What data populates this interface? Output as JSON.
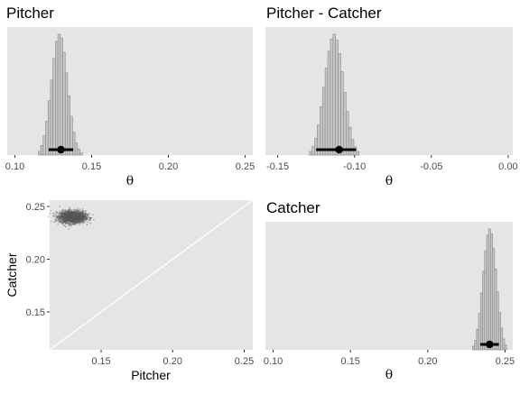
{
  "chart_data": [
    {
      "type": "histogram",
      "title": "Pitcher",
      "xlabel": "θ",
      "xlim": [
        0.095,
        0.255
      ],
      "x_ticks": [
        "0.10",
        "0.15",
        "0.20",
        "0.25"
      ],
      "x_tick_values": [
        0.1,
        0.15,
        0.2,
        0.25
      ],
      "bin_width": 0.0016,
      "bins": [
        {
          "x": 0.116,
          "density": 0.03
        },
        {
          "x": 0.1176,
          "density": 0.08
        },
        {
          "x": 0.1192,
          "density": 0.16
        },
        {
          "x": 0.1208,
          "density": 0.28
        },
        {
          "x": 0.1224,
          "density": 0.45
        },
        {
          "x": 0.124,
          "density": 0.62
        },
        {
          "x": 0.1256,
          "density": 0.8
        },
        {
          "x": 0.1272,
          "density": 0.94
        },
        {
          "x": 0.1288,
          "density": 1.0
        },
        {
          "x": 0.1304,
          "density": 0.97
        },
        {
          "x": 0.132,
          "density": 0.85
        },
        {
          "x": 0.1336,
          "density": 0.68
        },
        {
          "x": 0.1352,
          "density": 0.49
        },
        {
          "x": 0.1368,
          "density": 0.32
        },
        {
          "x": 0.1384,
          "density": 0.19
        },
        {
          "x": 0.14,
          "density": 0.1
        },
        {
          "x": 0.1416,
          "density": 0.05
        },
        {
          "x": 0.1432,
          "density": 0.02
        }
      ],
      "interval": {
        "low": 0.122,
        "high": 0.138,
        "point": 0.13
      }
    },
    {
      "type": "histogram",
      "title": "Pitcher - Catcher",
      "xlabel": "θ",
      "xlim": [
        -0.158,
        0.003
      ],
      "x_ticks": [
        "-0.15",
        "-0.10",
        "-0.05",
        "0.00"
      ],
      "x_tick_values": [
        -0.15,
        -0.1,
        -0.05,
        0.0
      ],
      "bin_width": 0.0017,
      "bins": [
        {
          "x": -0.1285,
          "density": 0.03
        },
        {
          "x": -0.1268,
          "density": 0.07
        },
        {
          "x": -0.1251,
          "density": 0.14
        },
        {
          "x": -0.1234,
          "density": 0.25
        },
        {
          "x": -0.1217,
          "density": 0.4
        },
        {
          "x": -0.12,
          "density": 0.56
        },
        {
          "x": -0.1183,
          "density": 0.72
        },
        {
          "x": -0.1166,
          "density": 0.86
        },
        {
          "x": -0.1149,
          "density": 0.96
        },
        {
          "x": -0.1132,
          "density": 1.0
        },
        {
          "x": -0.1115,
          "density": 0.95
        },
        {
          "x": -0.1098,
          "density": 0.84
        },
        {
          "x": -0.1081,
          "density": 0.69
        },
        {
          "x": -0.1064,
          "density": 0.52
        },
        {
          "x": -0.1047,
          "density": 0.36
        },
        {
          "x": -0.103,
          "density": 0.23
        },
        {
          "x": -0.1013,
          "density": 0.13
        },
        {
          "x": -0.0996,
          "density": 0.07
        },
        {
          "x": -0.0979,
          "density": 0.03
        }
      ],
      "interval": {
        "low": -0.125,
        "high": -0.099,
        "point": -0.11
      }
    },
    {
      "type": "scatter",
      "title": "",
      "xlabel": "Pitcher",
      "ylabel": "Catcher",
      "xlim": [
        0.114,
        0.256
      ],
      "ylim": [
        0.114,
        0.256
      ],
      "x_ticks": [
        "0.15",
        "0.20",
        "0.25"
      ],
      "x_tick_values": [
        0.15,
        0.2,
        0.25
      ],
      "y_ticks": [
        "0.25",
        "0.20",
        "0.15"
      ],
      "y_tick_values": [
        0.25,
        0.2,
        0.15
      ],
      "cloud": {
        "center_x": 0.13,
        "center_y": 0.24,
        "sd_x": 0.0045,
        "sd_y": 0.0028,
        "n": 2200
      },
      "reference_line": "y = x"
    },
    {
      "type": "histogram",
      "title": "Catcher",
      "xlabel": "θ",
      "xlim": [
        0.095,
        0.255
      ],
      "x_ticks": [
        "0.10",
        "0.15",
        "0.20",
        "0.25"
      ],
      "x_tick_values": [
        0.1,
        0.15,
        0.2,
        0.25
      ],
      "bin_width": 0.0013,
      "bins": [
        {
          "x": 0.2296,
          "density": 0.03
        },
        {
          "x": 0.2309,
          "density": 0.08
        },
        {
          "x": 0.2322,
          "density": 0.17
        },
        {
          "x": 0.2335,
          "density": 0.3
        },
        {
          "x": 0.2348,
          "density": 0.47
        },
        {
          "x": 0.2361,
          "density": 0.65
        },
        {
          "x": 0.2374,
          "density": 0.82
        },
        {
          "x": 0.2387,
          "density": 0.95
        },
        {
          "x": 0.24,
          "density": 1.0
        },
        {
          "x": 0.2413,
          "density": 0.96
        },
        {
          "x": 0.2426,
          "density": 0.84
        },
        {
          "x": 0.2439,
          "density": 0.67
        },
        {
          "x": 0.2452,
          "density": 0.48
        },
        {
          "x": 0.2465,
          "density": 0.31
        },
        {
          "x": 0.2478,
          "density": 0.18
        },
        {
          "x": 0.2491,
          "density": 0.09
        },
        {
          "x": 0.2504,
          "density": 0.04
        }
      ],
      "interval": {
        "low": 0.234,
        "high": 0.246,
        "point": 0.24
      }
    }
  ],
  "colors": {
    "panel_bg": "#e5e5e5",
    "bar_fill": "#c6c6c6",
    "bar_edge": "#8a8a8a",
    "interval": "#000000",
    "points": "#595959",
    "ref_line": "#ffffff",
    "tick": "#4d4d4d"
  }
}
